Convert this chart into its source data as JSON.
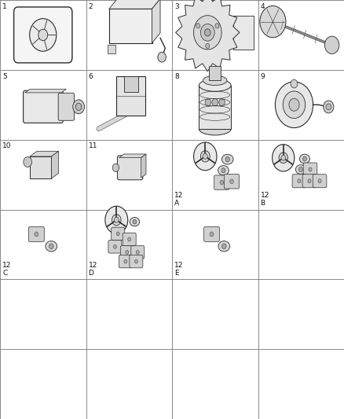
{
  "background_color": "#ffffff",
  "grid_color": "#888888",
  "line_width": 0.7,
  "grid_cols": 4,
  "grid_rows": 6,
  "label_fontsize": 6.5,
  "label_color": "#111111",
  "labels": {
    "0,0": [
      "1",
      "tl"
    ],
    "0,1": [
      "2",
      "tl"
    ],
    "0,2": [
      "3",
      "tl"
    ],
    "0,3": [
      "4",
      "tl"
    ],
    "1,0": [
      "5",
      "tl"
    ],
    "1,1": [
      "6",
      "tl"
    ],
    "1,2": [
      "8",
      "tl"
    ],
    "1,3": [
      "9",
      "tl"
    ],
    "2,0": [
      "10",
      "tl"
    ],
    "2,1": [
      "11",
      "tl"
    ],
    "2,2": [
      "12\nA",
      "bl"
    ],
    "2,3": [
      "12\nB",
      "bl"
    ],
    "3,0": [
      "12\nC",
      "bl"
    ],
    "3,1": [
      "12\nD",
      "bl"
    ],
    "3,2": [
      "12\nE",
      "bl"
    ]
  }
}
